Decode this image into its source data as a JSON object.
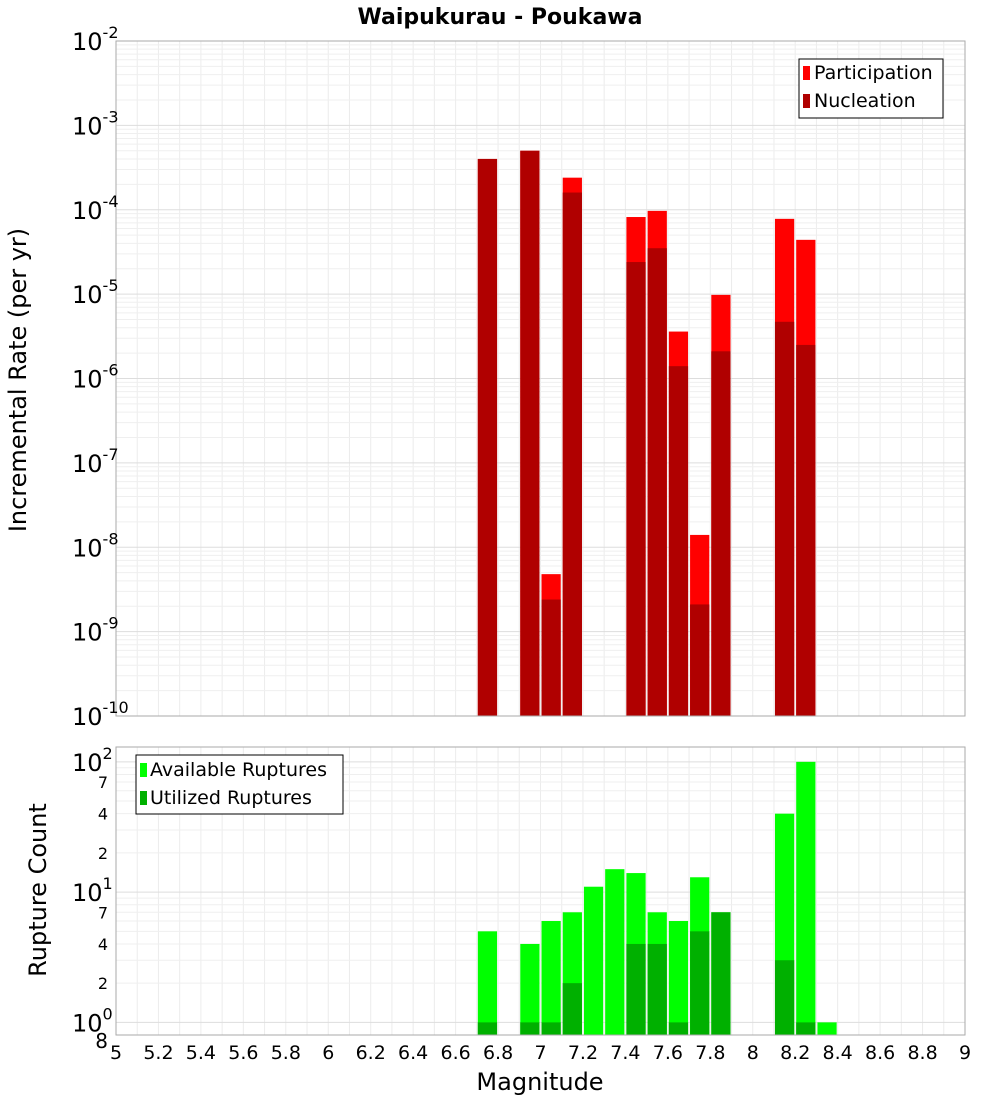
{
  "chart_data": [
    {
      "type": "bar",
      "title": "Waipukurau - Poukawa",
      "xlabel": "",
      "ylabel": "Incremental Rate (per yr)",
      "y_scale": "log",
      "xlim": [
        5,
        9
      ],
      "ylim": [
        1e-10,
        0.01
      ],
      "grid": true,
      "legend_position": "top-right",
      "y_tick_labels": [
        {
          "base": "10",
          "exp": "-10"
        },
        {
          "base": "10",
          "exp": "-9"
        },
        {
          "base": "10",
          "exp": "-8"
        },
        {
          "base": "10",
          "exp": "-7"
        },
        {
          "base": "10",
          "exp": "-6"
        },
        {
          "base": "10",
          "exp": "-5"
        },
        {
          "base": "10",
          "exp": "-4"
        },
        {
          "base": "10",
          "exp": "-3"
        },
        {
          "base": "10",
          "exp": "-2"
        }
      ],
      "bin_width": 0.1,
      "x": [
        6.75,
        6.95,
        7.05,
        7.15,
        7.45,
        7.55,
        7.65,
        7.75,
        7.85,
        8.15,
        8.25
      ],
      "series": [
        {
          "name": "Participation",
          "color": "#ff0000",
          "values": [
            0.0004,
            0.0005,
            4.8e-09,
            0.00024,
            8.2e-05,
            9.7e-05,
            3.6e-06,
            1.4e-08,
            9.8e-06,
            7.8e-05,
            4.4e-05
          ]
        },
        {
          "name": "Nucleation",
          "color": "#b00000",
          "values": [
            0.0004,
            0.0005,
            2.4e-09,
            0.00016,
            2.4e-05,
            3.5e-05,
            1.4e-06,
            2.1e-09,
            2.1e-06,
            4.7e-06,
            2.5e-06
          ]
        }
      ]
    },
    {
      "type": "bar",
      "title": "",
      "xlabel": "Magnitude",
      "ylabel": "Rupture Count",
      "y_scale": "log",
      "xlim": [
        5,
        9
      ],
      "ylim": [
        0.8,
        130
      ],
      "grid": true,
      "legend_position": "top-left",
      "x_tick_labels": [
        "5",
        "5.2",
        "5.4",
        "5.6",
        "5.8",
        "6",
        "6.2",
        "6.4",
        "6.6",
        "6.8",
        "7",
        "7.2",
        "7.4",
        "7.6",
        "7.8",
        "8",
        "8.2",
        "8.4",
        "8.6",
        "8.8",
        "9"
      ],
      "y_tick_labels": [
        {
          "base": "10",
          "exp": "0"
        },
        {
          "base": "10",
          "exp": "1"
        },
        {
          "base": "10",
          "exp": "2"
        }
      ],
      "y_minor_tick_labels": [
        "8",
        "2",
        "4",
        "7",
        "2",
        "4",
        "7"
      ],
      "bin_width": 0.1,
      "x": [
        6.75,
        6.95,
        7.05,
        7.15,
        7.25,
        7.35,
        7.45,
        7.55,
        7.65,
        7.75,
        7.85,
        8.15,
        8.25,
        8.35
      ],
      "series": [
        {
          "name": "Available Ruptures",
          "color": "#00ff00",
          "values": [
            5,
            4,
            6,
            7,
            11,
            15,
            14,
            7,
            6,
            13,
            7,
            40,
            100,
            1
          ]
        },
        {
          "name": "Utilized Ruptures",
          "color": "#00b000",
          "values": [
            1,
            1,
            1,
            2,
            0,
            0,
            4,
            4,
            1,
            5,
            7,
            3,
            1,
            0
          ]
        }
      ]
    }
  ]
}
